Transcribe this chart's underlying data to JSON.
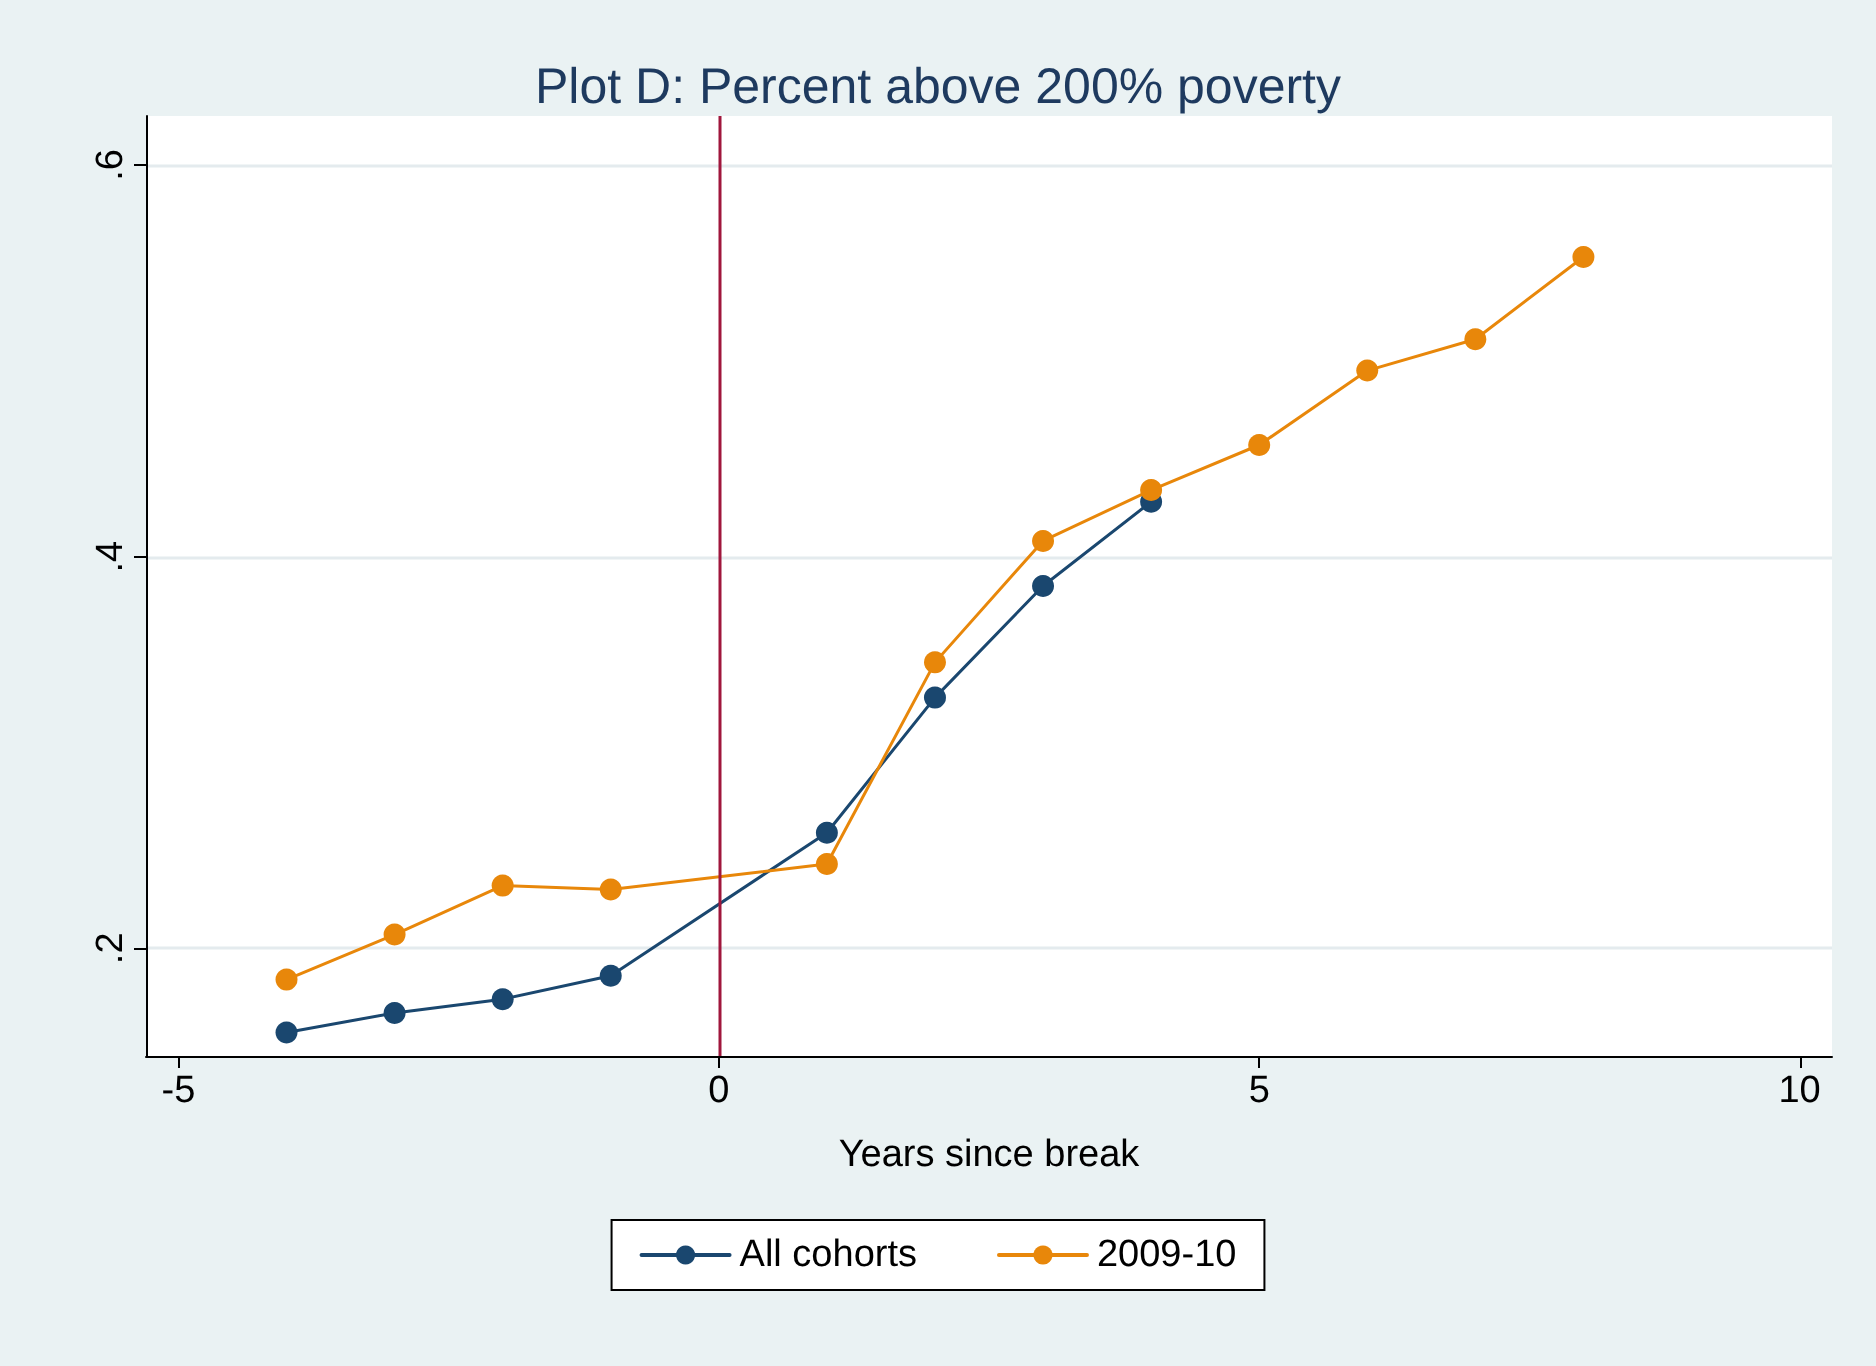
{
  "chart_data": {
    "type": "line",
    "title": "Plot D: Percent above 200% poverty",
    "xlabel": "Years since break",
    "series": [
      {
        "name": "All cohorts",
        "color": "#1a476f",
        "x": [
          -4,
          -3,
          -2,
          -1,
          1,
          2,
          3,
          4
        ],
        "values": [
          0.157,
          0.167,
          0.174,
          0.186,
          0.259,
          0.328,
          0.385,
          0.428
        ]
      },
      {
        "name": "2009-10",
        "color": "#e8870a",
        "x": [
          -4,
          -3,
          -2,
          -1,
          1,
          2,
          3,
          4,
          5,
          6,
          7,
          8
        ],
        "values": [
          0.184,
          0.207,
          0.232,
          0.23,
          0.243,
          0.346,
          0.408,
          0.434,
          0.457,
          0.495,
          0.511,
          0.553
        ]
      }
    ],
    "xlim": [
      -5.3,
      10.3
    ],
    "xticks": [
      -5,
      0,
      5,
      10
    ],
    "ylim": [
      0.145,
      0.625
    ],
    "yticks": [
      {
        "value": 0.2,
        "label": ".2"
      },
      {
        "value": 0.4,
        "label": ".4"
      },
      {
        "value": 0.6,
        "label": ".6"
      }
    ],
    "ref_lines": [
      {
        "axis": "x",
        "value": 0,
        "color": "#a0163c"
      }
    ],
    "grid": "y",
    "legend": "bottom",
    "marker": "circle",
    "line_style": "solid"
  }
}
